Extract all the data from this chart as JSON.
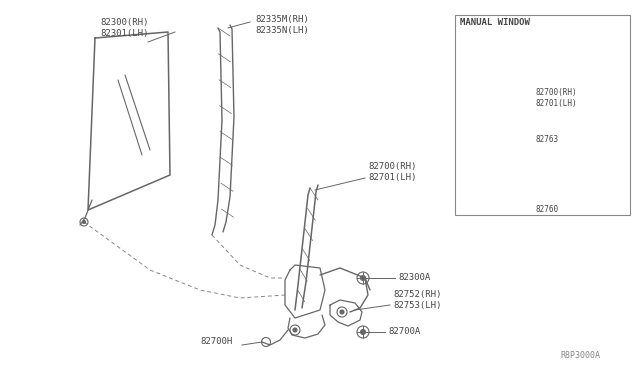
{
  "bg_color": "#ffffff",
  "diagram_color": "#666666",
  "text_color": "#444444",
  "ref_code": "R8P3000A",
  "inset_title": "MANUAL WINDOW",
  "fig_width": 6.4,
  "fig_height": 3.72,
  "dpi": 100,
  "label_82300": "82300(RH)\n82301(LH)",
  "label_82335": "82335M(RH)\n82335N(LH)",
  "label_82700_main": "82700(RH)\n82701(LH)",
  "label_82300A": "82300A",
  "label_82752": "82752(RH)\n82753(LH)",
  "label_82700H": "82700H",
  "label_82700A": "82700A",
  "label_82700_ins": "82700(RH)\n82701(LH)",
  "label_82763": "82763",
  "label_82760": "82760"
}
